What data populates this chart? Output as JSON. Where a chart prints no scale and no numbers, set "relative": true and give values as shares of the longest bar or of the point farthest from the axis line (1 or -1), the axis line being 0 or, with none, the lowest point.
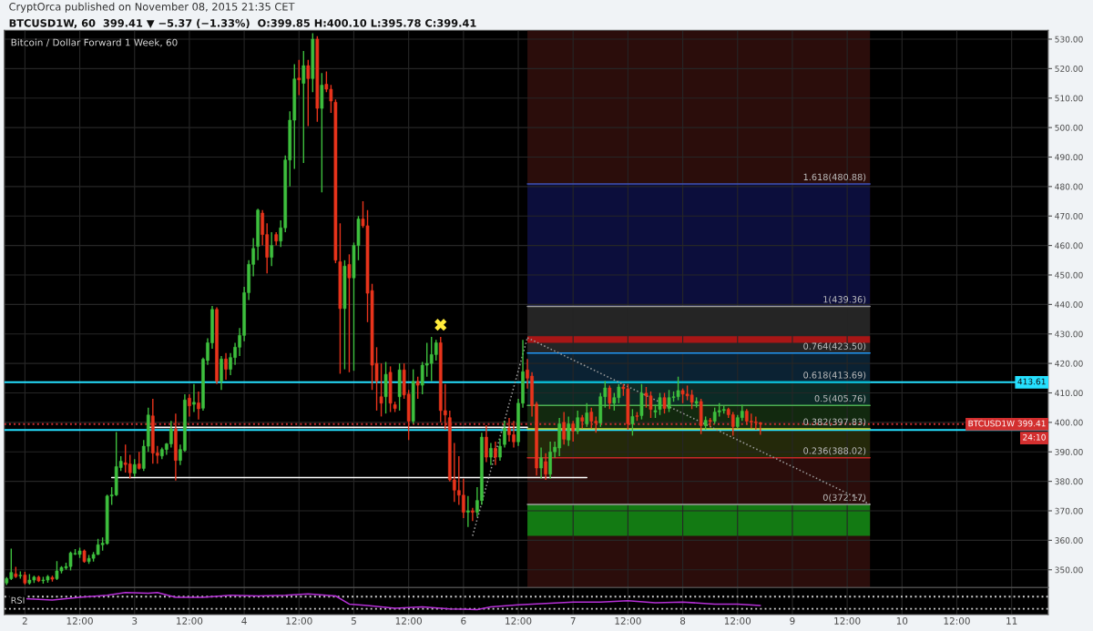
{
  "chart_data": [
    {
      "type": "candlestick",
      "title": "Bitcoin / Dollar Forward 1 Week, 60",
      "subtitle": "BTCUSD1W, 60  399.41 ▼ −5.37 (−1.33%)  O:399.85 H:400.10 L:395.78 C:399.41",
      "x": [
        "2015-11-01T20:00",
        "2015-11-01T21:00",
        "2015-11-01T22:00",
        "2015-11-01T23:00",
        "2015-11-02T00:00",
        "2015-11-02T01:00",
        "2015-11-02T02:00",
        "2015-11-02T03:00",
        "2015-11-02T04:00",
        "2015-11-02T05:00",
        "2015-11-02T06:00",
        "2015-11-02T07:00",
        "2015-11-02T08:00",
        "2015-11-02T09:00",
        "2015-11-02T10:00",
        "2015-11-02T11:00",
        "2015-11-02T12:00",
        "2015-11-02T13:00",
        "2015-11-02T14:00",
        "2015-11-02T15:00",
        "2015-11-02T16:00",
        "2015-11-02T17:00",
        "2015-11-02T18:00",
        "2015-11-02T19:00",
        "2015-11-02T20:00",
        "2015-11-02T21:00",
        "2015-11-02T22:00",
        "2015-11-02T23:00",
        "2015-11-03T00:00",
        "2015-11-03T01:00",
        "2015-11-03T02:00",
        "2015-11-03T03:00",
        "2015-11-03T04:00",
        "2015-11-03T05:00",
        "2015-11-03T06:00",
        "2015-11-03T07:00",
        "2015-11-03T08:00",
        "2015-11-03T09:00",
        "2015-11-03T10:00",
        "2015-11-03T11:00",
        "2015-11-03T12:00",
        "2015-11-03T13:00",
        "2015-11-03T14:00",
        "2015-11-03T15:00",
        "2015-11-03T16:00",
        "2015-11-03T17:00",
        "2015-11-03T18:00",
        "2015-11-03T19:00",
        "2015-11-03T20:00",
        "2015-11-03T21:00",
        "2015-11-03T22:00",
        "2015-11-03T23:00",
        "2015-11-04T00:00",
        "2015-11-04T01:00",
        "2015-11-04T02:00",
        "2015-11-04T03:00",
        "2015-11-04T04:00",
        "2015-11-04T05:00",
        "2015-11-04T06:00",
        "2015-11-04T07:00",
        "2015-11-04T08:00",
        "2015-11-04T09:00",
        "2015-11-04T10:00",
        "2015-11-04T11:00",
        "2015-11-04T12:00",
        "2015-11-04T13:00",
        "2015-11-04T14:00",
        "2015-11-04T15:00",
        "2015-11-04T16:00",
        "2015-11-04T17:00",
        "2015-11-04T18:00",
        "2015-11-04T19:00",
        "2015-11-04T20:00",
        "2015-11-04T21:00",
        "2015-11-04T22:00",
        "2015-11-04T23:00",
        "2015-11-05T00:00",
        "2015-11-05T01:00",
        "2015-11-05T02:00",
        "2015-11-05T03:00",
        "2015-11-05T04:00",
        "2015-11-05T05:00",
        "2015-11-05T06:00",
        "2015-11-05T07:00",
        "2015-11-05T08:00",
        "2015-11-05T09:00",
        "2015-11-05T10:00",
        "2015-11-05T11:00",
        "2015-11-05T12:00",
        "2015-11-05T13:00",
        "2015-11-05T14:00",
        "2015-11-05T15:00",
        "2015-11-05T16:00",
        "2015-11-05T17:00",
        "2015-11-05T18:00",
        "2015-11-05T19:00",
        "2015-11-05T20:00",
        "2015-11-05T21:00",
        "2015-11-05T22:00",
        "2015-11-05T23:00",
        "2015-11-06T00:00",
        "2015-11-06T01:00",
        "2015-11-06T02:00",
        "2015-11-06T03:00",
        "2015-11-06T04:00",
        "2015-11-06T05:00",
        "2015-11-06T06:00",
        "2015-11-06T07:00",
        "2015-11-06T08:00",
        "2015-11-06T09:00",
        "2015-11-06T10:00",
        "2015-11-06T11:00",
        "2015-11-06T12:00",
        "2015-11-06T13:00",
        "2015-11-06T14:00",
        "2015-11-06T15:00",
        "2015-11-06T16:00",
        "2015-11-06T17:00",
        "2015-11-06T18:00",
        "2015-11-06T19:00",
        "2015-11-06T20:00",
        "2015-11-06T21:00",
        "2015-11-06T22:00",
        "2015-11-06T23:00",
        "2015-11-07T00:00",
        "2015-11-07T01:00",
        "2015-11-07T02:00",
        "2015-11-07T03:00",
        "2015-11-07T04:00",
        "2015-11-07T05:00",
        "2015-11-07T06:00",
        "2015-11-07T07:00",
        "2015-11-07T08:00",
        "2015-11-07T09:00",
        "2015-11-07T10:00",
        "2015-11-07T11:00",
        "2015-11-07T12:00",
        "2015-11-07T13:00",
        "2015-11-07T14:00",
        "2015-11-07T15:00",
        "2015-11-07T16:00",
        "2015-11-07T17:00",
        "2015-11-07T18:00",
        "2015-11-07T19:00",
        "2015-11-07T20:00",
        "2015-11-07T21:00",
        "2015-11-07T22:00",
        "2015-11-07T23:00",
        "2015-11-08T00:00",
        "2015-11-08T01:00",
        "2015-11-08T02:00",
        "2015-11-08T03:00",
        "2015-11-08T04:00",
        "2015-11-08T05:00",
        "2015-11-08T06:00",
        "2015-11-08T07:00",
        "2015-11-08T08:00",
        "2015-11-08T09:00",
        "2015-11-08T10:00",
        "2015-11-08T11:00",
        "2015-11-08T12:00",
        "2015-11-08T13:00",
        "2015-11-08T14:00",
        "2015-11-08T15:00",
        "2015-11-08T16:00",
        "2015-11-08T17:00"
      ],
      "ohlc": [
        [
          345.5,
          347.5,
          344.8,
          347.0
        ],
        [
          347.0,
          357.2,
          346.5,
          349.1
        ],
        [
          348.6,
          351.0,
          347.2,
          347.7
        ],
        [
          347.9,
          349.5,
          347.0,
          348.1
        ],
        [
          348.2,
          349.3,
          345.0,
          345.5
        ],
        [
          345.5,
          348.5,
          345.0,
          346.5
        ],
        [
          346.5,
          348.0,
          345.5,
          347.5
        ],
        [
          347.5,
          348.0,
          345.8,
          346.2
        ],
        [
          346.3,
          347.6,
          345.3,
          346.5
        ],
        [
          346.5,
          348.2,
          345.6,
          347.7
        ],
        [
          347.4,
          348.0,
          346.0,
          346.8
        ],
        [
          347.0,
          352.9,
          346.5,
          349.6
        ],
        [
          349.6,
          351.2,
          348.8,
          350.8
        ],
        [
          350.6,
          352.4,
          350.0,
          351.1
        ],
        [
          351.1,
          356.2,
          349.8,
          355.7
        ],
        [
          355.3,
          357.0,
          355.0,
          355.5
        ],
        [
          355.2,
          357.5,
          354.0,
          356.4
        ],
        [
          356.4,
          356.9,
          352.4,
          352.8
        ],
        [
          352.8,
          355.0,
          352.0,
          353.9
        ],
        [
          353.9,
          356.0,
          352.8,
          355.2
        ],
        [
          355.2,
          360.5,
          355.0,
          358.5
        ],
        [
          358.5,
          361.0,
          356.5,
          359.0
        ],
        [
          358.9,
          375.5,
          358.5,
          375.0
        ],
        [
          375.0,
          378.0,
          372.0,
          375.4
        ],
        [
          375.4,
          396.7,
          375.0,
          385.0
        ],
        [
          384.7,
          388.5,
          383.5,
          386.8
        ],
        [
          386.3,
          392.5,
          383.0,
          385.7
        ],
        [
          385.9,
          389.0,
          381.0,
          382.9
        ],
        [
          382.7,
          387.5,
          381.5,
          385.7
        ],
        [
          385.9,
          390.0,
          384.0,
          384.4
        ],
        [
          384.4,
          394.0,
          383.5,
          391.9
        ],
        [
          391.9,
          405.0,
          390.0,
          402.5
        ],
        [
          402.2,
          408.0,
          386.0,
          389.6
        ],
        [
          389.6,
          392.0,
          386.0,
          388.8
        ],
        [
          388.6,
          391.5,
          387.5,
          390.8
        ],
        [
          390.8,
          393.0,
          389.0,
          392.7
        ],
        [
          392.7,
          400.5,
          391.5,
          397.7
        ],
        [
          397.7,
          403.0,
          380.3,
          387.1
        ],
        [
          387.1,
          392.5,
          385.5,
          390.8
        ],
        [
          390.5,
          409.5,
          390.0,
          407.6
        ],
        [
          408.2,
          409.5,
          402.0,
          405.6
        ],
        [
          406.1,
          413.0,
          403.5,
          406.8
        ],
        [
          406.6,
          410.5,
          401.0,
          404.6
        ],
        [
          404.8,
          422.0,
          404.0,
          421.4
        ],
        [
          421.0,
          428.5,
          419.5,
          427.0
        ],
        [
          427.0,
          439.5,
          425.0,
          438.3
        ],
        [
          438.3,
          439.0,
          413.0,
          414.0
        ],
        [
          414.0,
          422.5,
          411.0,
          421.5
        ],
        [
          421.5,
          423.5,
          414.5,
          418.0
        ],
        [
          418.0,
          423.5,
          416.0,
          422.0
        ],
        [
          422.0,
          427.0,
          419.5,
          425.5
        ],
        [
          425.5,
          432.0,
          422.5,
          429.5
        ],
        [
          429.5,
          446.0,
          427.5,
          444.0
        ],
        [
          444.0,
          455.0,
          441.5,
          453.6
        ],
        [
          453.6,
          462.5,
          449.5,
          459.0
        ],
        [
          459.7,
          472.5,
          455.0,
          472.0
        ],
        [
          471.0,
          472.0,
          460.0,
          463.7
        ],
        [
          463.7,
          467.5,
          450.5,
          456.0
        ],
        [
          456.0,
          464.5,
          453.0,
          460.0
        ],
        [
          463.7,
          464.5,
          460.0,
          461.5
        ],
        [
          461.5,
          468.5,
          459.5,
          466.0
        ],
        [
          466.0,
          490.5,
          464.5,
          489.0
        ],
        [
          489.0,
          505.5,
          480.0,
          502.5
        ],
        [
          502.5,
          521.5,
          486.0,
          516.5
        ],
        [
          516.8,
          523.0,
          511.0,
          516.2
        ],
        [
          515.0,
          526.0,
          488.0,
          521.0
        ],
        [
          521.0,
          523.0,
          500.5,
          516.6
        ],
        [
          516.6,
          532.0,
          512.0,
          530.0
        ],
        [
          530.0,
          531.0,
          502.0,
          506.5
        ],
        [
          506.5,
          518.5,
          478.0,
          514.4
        ],
        [
          514.7,
          519.0,
          512.0,
          513.0
        ],
        [
          513.0,
          514.5,
          505.0,
          509.0
        ],
        [
          508.6,
          509.5,
          454.0,
          455.0
        ],
        [
          454.5,
          467.5,
          416.5,
          438.6
        ],
        [
          438.6,
          455.0,
          418.0,
          453.0
        ],
        [
          453.6,
          457.0,
          417.0,
          449.0
        ],
        [
          449.0,
          461.0,
          417.5,
          460.0
        ],
        [
          460.0,
          470.0,
          455.0,
          469.0
        ],
        [
          469.0,
          475.0,
          466.0,
          466.7
        ],
        [
          466.7,
          472.0,
          434.0,
          443.8
        ],
        [
          444.7,
          447.0,
          411.0,
          419.4
        ],
        [
          420.0,
          425.5,
          404.0,
          414.0
        ],
        [
          408.7,
          420.0,
          402.0,
          406.5
        ],
        [
          408.7,
          420.5,
          403.0,
          416.3
        ],
        [
          417.0,
          419.0,
          403.5,
          406.5
        ],
        [
          406.0,
          407.0,
          403.5,
          404.7
        ],
        [
          408.7,
          420.0,
          404.0,
          417.8
        ],
        [
          417.8,
          420.0,
          408.0,
          409.3
        ],
        [
          409.6,
          411.0,
          394.0,
          400.4
        ],
        [
          400.4,
          418.0,
          399.5,
          413.9
        ],
        [
          413.9,
          415.5,
          408.0,
          412.6
        ],
        [
          412.6,
          420.5,
          409.5,
          419.4
        ],
        [
          419.4,
          427.0,
          415.5,
          420.0
        ],
        [
          420.0,
          429.0,
          414.0,
          423.0
        ],
        [
          423.0,
          428.0,
          421.0,
          427.0
        ],
        [
          427.0,
          429.0,
          400.0,
          404.0
        ],
        [
          404.0,
          413.0,
          397.5,
          402.5
        ],
        [
          401.6,
          404.0,
          380.0,
          380.5
        ],
        [
          380.5,
          393.0,
          373.0,
          377.0
        ],
        [
          376.9,
          388.5,
          372.0,
          375.3
        ],
        [
          375.3,
          381.0,
          367.5,
          369.5
        ],
        [
          369.5,
          375.0,
          364.5,
          370.0
        ],
        [
          370.0,
          371.0,
          366.5,
          369.5
        ],
        [
          369.5,
          378.0,
          368.0,
          373.5
        ],
        [
          373.5,
          396.5,
          372.0,
          395.0
        ],
        [
          395.0,
          399.0,
          386.5,
          388.2
        ],
        [
          388.2,
          393.0,
          385.5,
          391.2
        ],
        [
          391.2,
          393.5,
          385.5,
          388.2
        ],
        [
          388.2,
          394.5,
          387.0,
          391.9
        ],
        [
          392.5,
          400.5,
          391.5,
          398.0
        ],
        [
          398.0,
          401.5,
          393.5,
          395.8
        ],
        [
          395.8,
          400.5,
          391.5,
          393.4
        ],
        [
          393.4,
          408.0,
          392.0,
          406.5
        ],
        [
          406.5,
          428.0,
          405.0,
          417.2
        ],
        [
          417.8,
          421.5,
          411.5,
          415.0
        ],
        [
          415.7,
          417.0,
          402.0,
          405.6
        ],
        [
          406.2,
          407.0,
          382.0,
          384.5
        ],
        [
          384.5,
          391.5,
          381.0,
          388.0
        ],
        [
          386.7,
          389.5,
          380.5,
          382.4
        ],
        [
          382.4,
          393.5,
          381.0,
          390.0
        ],
        [
          390.0,
          393.5,
          388.0,
          391.6
        ],
        [
          391.3,
          401.5,
          388.5,
          399.5
        ],
        [
          400.0,
          403.5,
          392.5,
          394.3
        ],
        [
          394.0,
          402.0,
          392.0,
          399.5
        ],
        [
          399.5,
          400.5,
          393.5,
          397.0
        ],
        [
          397.0,
          404.0,
          396.0,
          401.6
        ],
        [
          401.6,
          402.5,
          398.0,
          400.4
        ],
        [
          399.5,
          406.5,
          398.5,
          403.2
        ],
        [
          403.5,
          405.0,
          398.0,
          400.4
        ],
        [
          400.4,
          402.0,
          396.5,
          399.8
        ],
        [
          399.8,
          410.0,
          398.5,
          408.7
        ],
        [
          408.7,
          414.0,
          405.0,
          411.7
        ],
        [
          411.7,
          412.5,
          404.5,
          406.5
        ],
        [
          406.5,
          410.0,
          404.0,
          408.4
        ],
        [
          408.4,
          413.0,
          406.5,
          412.0
        ],
        [
          412.0,
          413.0,
          409.0,
          411.4
        ],
        [
          411.4,
          413.0,
          397.5,
          399.5
        ],
        [
          399.5,
          404.5,
          395.5,
          402.0
        ],
        [
          402.2,
          403.5,
          400.5,
          402.0
        ],
        [
          402.3,
          413.0,
          401.0,
          409.9
        ],
        [
          409.9,
          412.0,
          405.0,
          409.0
        ],
        [
          409.0,
          410.5,
          401.5,
          404.4
        ],
        [
          403.5,
          406.0,
          401.5,
          404.0
        ],
        [
          404.4,
          410.0,
          402.5,
          408.4
        ],
        [
          408.4,
          410.0,
          403.0,
          404.7
        ],
        [
          404.7,
          411.0,
          403.5,
          408.4
        ],
        [
          408.4,
          410.5,
          407.0,
          408.7
        ],
        [
          408.7,
          415.5,
          407.5,
          410.8
        ],
        [
          410.8,
          411.5,
          406.5,
          409.6
        ],
        [
          409.6,
          412.5,
          407.5,
          409.0
        ],
        [
          409.3,
          411.0,
          404.5,
          406.8
        ],
        [
          406.5,
          408.5,
          405.0,
          407.1
        ],
        [
          407.1,
          408.0,
          396.0,
          398.9
        ],
        [
          398.9,
          402.0,
          397.5,
          400.7
        ],
        [
          400.7,
          401.5,
          398.5,
          400.3
        ],
        [
          400.4,
          405.0,
          399.5,
          403.5
        ],
        [
          403.5,
          406.5,
          402.0,
          404.0
        ],
        [
          404.0,
          405.5,
          403.0,
          404.4
        ],
        [
          404.4,
          405.0,
          401.5,
          402.6
        ],
        [
          402.6,
          403.5,
          395.5,
          398.6
        ],
        [
          398.6,
          402.5,
          398.0,
          401.6
        ],
        [
          401.6,
          406.0,
          400.5,
          403.8
        ],
        [
          403.8,
          404.5,
          399.5,
          400.4
        ],
        [
          400.4,
          403.0,
          398.0,
          400.1
        ],
        [
          400.1,
          402.0,
          397.5,
          399.9
        ],
        [
          399.85,
          400.1,
          395.78,
          399.41
        ]
      ],
      "colors": [
        "#3ebf3e",
        "#3ebf3e",
        "#e8341c",
        "#3ebf3e",
        "#e8341c",
        "#3ebf3e",
        "#3ebf3e",
        "#e8341c",
        "#3ebf3e",
        "#3ebf3e",
        "#e8341c",
        "#3ebf3e",
        "#3ebf3e",
        "#3ebf3e",
        "#3ebf3e",
        "#3ebf3e",
        "#3ebf3e",
        "#e8341c",
        "#3ebf3e",
        "#3ebf3e",
        "#3ebf3e",
        "#3ebf3e",
        "#3ebf3e",
        "#3ebf3e",
        "#3ebf3e",
        "#3ebf3e",
        "#e8341c",
        "#e8341c",
        "#3ebf3e",
        "#e8341c",
        "#3ebf3e",
        "#3ebf3e",
        "#e8341c",
        "#e8341c",
        "#3ebf3e",
        "#3ebf3e",
        "#3ebf3e",
        "#e8341c",
        "#3ebf3e",
        "#3ebf3e",
        "#e8341c",
        "#3ebf3e",
        "#e8341c",
        "#3ebf3e",
        "#3ebf3e",
        "#3ebf3e",
        "#e8341c",
        "#3ebf3e",
        "#e8341c",
        "#3ebf3e",
        "#3ebf3e",
        "#3ebf3e",
        "#3ebf3e",
        "#3ebf3e",
        "#3ebf3e",
        "#3ebf3e",
        "#e8341c",
        "#e8341c",
        "#3ebf3e",
        "#e8341c",
        "#3ebf3e",
        "#3ebf3e",
        "#3ebf3e",
        "#3ebf3e",
        "#e8341c",
        "#3ebf3e",
        "#e8341c",
        "#3ebf3e",
        "#e8341c",
        "#3ebf3e",
        "#e8341c",
        "#e8341c",
        "#e8341c",
        "#e8341c",
        "#3ebf3e",
        "#e8341c",
        "#3ebf3e",
        "#3ebf3e",
        "#e8341c",
        "#e8341c",
        "#e8341c",
        "#e8341c",
        "#e8341c",
        "#3ebf3e",
        "#e8341c",
        "#e8341c",
        "#3ebf3e",
        "#e8341c",
        "#e8341c",
        "#3ebf3e",
        "#e8341c",
        "#3ebf3e",
        "#3ebf3e",
        "#3ebf3e",
        "#3ebf3e",
        "#e8341c",
        "#e8341c",
        "#e8341c",
        "#e8341c",
        "#e8341c",
        "#e8341c",
        "#3ebf3e",
        "#e8341c",
        "#3ebf3e",
        "#3ebf3e",
        "#e8341c",
        "#3ebf3e",
        "#e8341c",
        "#3ebf3e",
        "#3ebf3e",
        "#e8341c",
        "#e8341c",
        "#3ebf3e",
        "#3ebf3e",
        "#e8341c",
        "#e8341c",
        "#e8341c",
        "#3ebf3e",
        "#e8341c",
        "#3ebf3e",
        "#3ebf3e",
        "#3ebf3e",
        "#e8341c",
        "#3ebf3e",
        "#e8341c",
        "#3ebf3e",
        "#e8341c",
        "#3ebf3e",
        "#e8341c",
        "#e8341c",
        "#3ebf3e",
        "#3ebf3e",
        "#e8341c",
        "#3ebf3e",
        "#3ebf3e",
        "#e8341c",
        "#e8341c",
        "#3ebf3e",
        "#e8341c",
        "#3ebf3e",
        "#e8341c",
        "#e8341c",
        "#3ebf3e",
        "#3ebf3e",
        "#e8341c",
        "#3ebf3e",
        "#3ebf3e",
        "#3ebf3e",
        "#e8341c",
        "#e8341c",
        "#e8341c",
        "#3ebf3e",
        "#e8341c",
        "#3ebf3e",
        "#e8341c",
        "#3ebf3e",
        "#3ebf3e",
        "#3ebf3e",
        "#e8341c",
        "#e8341c",
        "#3ebf3e",
        "#3ebf3e",
        "#e8341c",
        "#e8341c",
        "#e8341c",
        "#e8341c"
      ],
      "series": [
        {
          "type": "line",
          "x": [
            "2015-11-06T14:00",
            "2015-11-09T17:00"
          ],
          "values": [
            480.88,
            480.88
          ],
          "color": "#3f51b5"
        },
        {
          "type": "line",
          "x": [
            "2015-11-06T14:00",
            "2015-11-09T17:00"
          ],
          "values": [
            439.36,
            439.36
          ],
          "color": "#9e9e9e"
        },
        {
          "type": "line",
          "x": [
            "2015-11-06T14:00",
            "2015-11-09T17:00"
          ],
          "values": [
            423.5,
            423.5
          ],
          "color": "#2196f3"
        },
        {
          "type": "line",
          "x": [
            "2015-11-06T14:00",
            "2015-11-09T17:00"
          ],
          "values": [
            413.69,
            413.69
          ],
          "color": "#00bcd4"
        },
        {
          "type": "line",
          "x": [
            "2015-11-06T14:00",
            "2015-11-09T17:00"
          ],
          "values": [
            405.76,
            405.76
          ],
          "color": "#4caf50"
        },
        {
          "type": "line",
          "x": [
            "2015-11-06T14:00",
            "2015-11-09T17:00"
          ],
          "values": [
            397.83,
            397.83
          ],
          "color": "#cddc39"
        },
        {
          "type": "line",
          "x": [
            "2015-11-06T14:00",
            "2015-11-09T17:00"
          ],
          "values": [
            388.02,
            388.02
          ],
          "color": "#c62828"
        },
        {
          "type": "line",
          "x": [
            "2015-11-06T14:00",
            "2015-11-09T17:00"
          ],
          "values": [
            372.17,
            372.17
          ],
          "color": "#9e9e9e"
        },
        {
          "type": "line",
          "x": [
            "2015-11-03T03:00",
            "2015-11-06T14:00"
          ],
          "values": [
            398.3,
            398.3
          ],
          "color": "#ffffff"
        },
        {
          "type": "line",
          "x": [
            "2015-11-02T19:00",
            "2015-11-07T03:00"
          ],
          "values": [
            381.3,
            381.3
          ],
          "color": "#ffffff"
        },
        {
          "type": "line",
          "x": [
            "2015-11-06T02:00",
            "2015-11-06T14:00"
          ],
          "values": [
            361.5,
            428.7
          ],
          "color": "#9e9e9e",
          "line_style": "dotted"
        },
        {
          "type": "line",
          "x": [
            "2015-11-06T14:00",
            "2015-11-09T17:00"
          ],
          "values": [
            428.7,
            372.2
          ],
          "color": "#9e9e9e",
          "line_style": "dotted"
        },
        {
          "type": "scatter",
          "x": [
            "2015-11-05T19:00"
          ],
          "values": [
            433.1
          ],
          "color": "#ffeb3b",
          "marker": "cross"
        }
      ],
      "bands": [
        {
          "axis": "x",
          "from": "2015-11-06T14:00",
          "to": "2015-11-09T17:00",
          "color": "#2b0d0b"
        },
        {
          "axis": "y",
          "from": 439.36,
          "to": 480.88,
          "color": "#0c0e3c"
        },
        {
          "axis": "y",
          "from": 423.5,
          "to": 439.36,
          "color": "#252525"
        },
        {
          "axis": "y",
          "from": 413.69,
          "to": 423.5,
          "color": "#0b2233"
        },
        {
          "axis": "y",
          "from": 405.76,
          "to": 413.69,
          "color": "#0c2a26"
        },
        {
          "axis": "y",
          "from": 397.83,
          "to": 405.76,
          "color": "#12290f"
        },
        {
          "axis": "y",
          "from": 388.02,
          "to": 397.83,
          "color": "#24290a"
        },
        {
          "axis": "y",
          "from": 361.5,
          "to": 372.17,
          "color": "#137a13"
        },
        {
          "axis": "y",
          "from": 427.0,
          "to": 429.2,
          "color": "#a81616"
        }
      ],
      "ref_lines": [
        {
          "axis": "y",
          "value": 413.61,
          "label": "413.61",
          "color": "#26e0ff",
          "line_style": "solid"
        },
        {
          "axis": "y",
          "value": 399.41,
          "label": "BTCUSD1W 399.41",
          "color": "#d32f2f",
          "line_style": "dotted"
        },
        {
          "axis": "y",
          "value": 397.4,
          "color": "#26e0ff",
          "line_style": "solid"
        }
      ],
      "annotations": [
        "CryptOrca published on November 08, 2015 21:35 CET",
        "24:10",
        {
          "text": "1.618(480.88)",
          "x": "2015-11-09T17:00",
          "y": 480.88
        },
        {
          "text": "1(439.36)",
          "x": "2015-11-09T17:00",
          "y": 439.36
        },
        {
          "text": "0.764(423.50)",
          "x": "2015-11-09T17:00",
          "y": 423.5
        },
        {
          "text": "0.618(413.69)",
          "x": "2015-11-09T17:00",
          "y": 413.69
        },
        {
          "text": "0.5(405.76)",
          "x": "2015-11-09T17:00",
          "y": 405.76
        },
        {
          "text": "0.382(397.83)",
          "x": "2015-11-09T17:00",
          "y": 397.83
        },
        {
          "text": "0.236(388.02)",
          "x": "2015-11-09T17:00",
          "y": 388.02
        },
        {
          "text": "0(372.17)",
          "x": "2015-11-09T17:00",
          "y": 372.17
        }
      ],
      "xlim": [
        "2015-11-01T19:30",
        "2015-11-11T08:00"
      ],
      "xticks": [
        {
          "value": "2015-11-02T00:00",
          "label": null
        },
        {
          "value": "2015-11-02T12:00",
          "label": null
        },
        {
          "value": "2015-11-03T00:00",
          "label": null
        },
        {
          "value": "2015-11-03T12:00",
          "label": null
        },
        {
          "value": "2015-11-04T00:00",
          "label": null
        },
        {
          "value": "2015-11-04T12:00",
          "label": null
        },
        {
          "value": "2015-11-05T00:00",
          "label": null
        },
        {
          "value": "2015-11-05T12:00",
          "label": null
        },
        {
          "value": "2015-11-06T00:00",
          "label": null
        },
        {
          "value": "2015-11-06T12:00",
          "label": null
        },
        {
          "value": "2015-11-07T00:00",
          "label": null
        },
        {
          "value": "2015-11-07T12:00",
          "label": null
        },
        {
          "value": "2015-11-08T00:00",
          "label": null
        },
        {
          "value": "2015-11-08T12:00",
          "label": null
        },
        {
          "value": "2015-11-09T00:00",
          "label": null
        },
        {
          "value": "2015-11-09T12:00",
          "label": null
        },
        {
          "value": "2015-11-10T00:00",
          "label": null
        },
        {
          "value": "2015-11-10T12:00",
          "label": null
        },
        {
          "value": "2015-11-11T00:00",
          "label": null
        }
      ],
      "ylim": [
        344,
        533
      ],
      "yticks": [
        {
          "value": 350,
          "label": "350.00"
        },
        {
          "value": 360,
          "label": "360.00"
        },
        {
          "value": 370,
          "label": "370.00"
        },
        {
          "value": 380,
          "label": "380.00"
        },
        {
          "value": 390,
          "label": "390.00"
        },
        {
          "value": 400,
          "label": "400.00"
        },
        {
          "value": 410,
          "label": "410.00"
        },
        {
          "value": 420,
          "label": "420.00"
        },
        {
          "value": 430,
          "label": "430.00"
        },
        {
          "value": 440,
          "label": "440.00"
        },
        {
          "value": 450,
          "label": "450.00"
        },
        {
          "value": 460,
          "label": "460.00"
        },
        {
          "value": 470,
          "label": "470.00"
        },
        {
          "value": 480,
          "label": "480.00"
        },
        {
          "value": 490,
          "label": "490.00"
        },
        {
          "value": 500,
          "label": "500.00"
        },
        {
          "value": 510,
          "label": "510.00"
        },
        {
          "value": 520,
          "label": "520.00"
        },
        {
          "value": 530,
          "label": "530.00"
        }
      ],
      "grid": true,
      "tick_labels": "y"
    },
    {
      "type": "line",
      "relative": true,
      "series": [
        {
          "x": [
            "2015-11-02T00:00",
            "2015-11-02T06:00",
            "2015-11-02T12:00",
            "2015-11-02T18:00",
            "2015-11-02T22:00",
            "2015-11-03T03:00",
            "2015-11-03T05:00",
            "2015-11-03T09:00",
            "2015-11-03T15:00",
            "2015-11-03T21:00",
            "2015-11-04T03:00",
            "2015-11-04T09:00",
            "2015-11-04T14:00",
            "2015-11-04T20:00",
            "2015-11-04T23:00",
            "2015-11-05T03:00",
            "2015-11-05T09:00",
            "2015-11-05T15:00",
            "2015-11-05T21:00",
            "2015-11-06T03:00",
            "2015-11-06T06:00",
            "2015-11-06T12:00",
            "2015-11-06T18:00",
            "2015-11-07T00:00",
            "2015-11-07T06:00",
            "2015-11-07T12:00",
            "2015-11-07T18:00",
            "2015-11-08T00:00",
            "2015-11-08T07:00",
            "2015-11-08T12:00",
            "2015-11-08T17:00"
          ],
          "values": [
            0.64,
            0.56,
            0.72,
            0.84,
            1,
            0.96,
            1,
            0.72,
            0.72,
            0.84,
            0.8,
            0.84,
            0.92,
            0.8,
            0.32,
            0.24,
            0.08,
            0.16,
            0.04,
            0,
            0.16,
            0.28,
            0.36,
            0.44,
            0.44,
            0.52,
            0.4,
            0.44,
            0.32,
            0.32,
            0.24
          ],
          "color": "#b52fd6"
        }
      ],
      "ref_lines": [
        {
          "axis": "y",
          "value": 0.76,
          "color": "#cfcfcf",
          "line_style": "dotted"
        },
        {
          "axis": "y",
          "value": 0.04,
          "color": "#cfcfcf",
          "line_style": "dotted"
        }
      ],
      "annotations": [
        "RSI"
      ],
      "xlim": [
        "2015-11-01T19:30",
        "2015-11-11T08:00"
      ],
      "xticks": [
        {
          "value": "2015-11-02T00:00",
          "label": "2"
        },
        {
          "value": "2015-11-02T12:00",
          "label": "12:00"
        },
        {
          "value": "2015-11-03T00:00",
          "label": "3"
        },
        {
          "value": "2015-11-03T12:00",
          "label": "12:00"
        },
        {
          "value": "2015-11-04T00:00",
          "label": "4"
        },
        {
          "value": "2015-11-04T12:00",
          "label": "12:00"
        },
        {
          "value": "2015-11-05T00:00",
          "label": "5"
        },
        {
          "value": "2015-11-05T12:00",
          "label": "12:00"
        },
        {
          "value": "2015-11-06T00:00",
          "label": "6"
        },
        {
          "value": "2015-11-06T12:00",
          "label": "12:00"
        },
        {
          "value": "2015-11-07T00:00",
          "label": "7"
        },
        {
          "value": "2015-11-07T12:00",
          "label": "12:00"
        },
        {
          "value": "2015-11-08T00:00",
          "label": "8"
        },
        {
          "value": "2015-11-08T12:00",
          "label": "12:00"
        },
        {
          "value": "2015-11-09T00:00",
          "label": "9"
        },
        {
          "value": "2015-11-09T12:00",
          "label": "12:00"
        },
        {
          "value": "2015-11-10T00:00",
          "label": "10"
        },
        {
          "value": "2015-11-10T12:00",
          "label": "12:00"
        },
        {
          "value": "2015-11-11T00:00",
          "label": "11"
        }
      ],
      "grid": true,
      "tick_labels": "x"
    }
  ]
}
